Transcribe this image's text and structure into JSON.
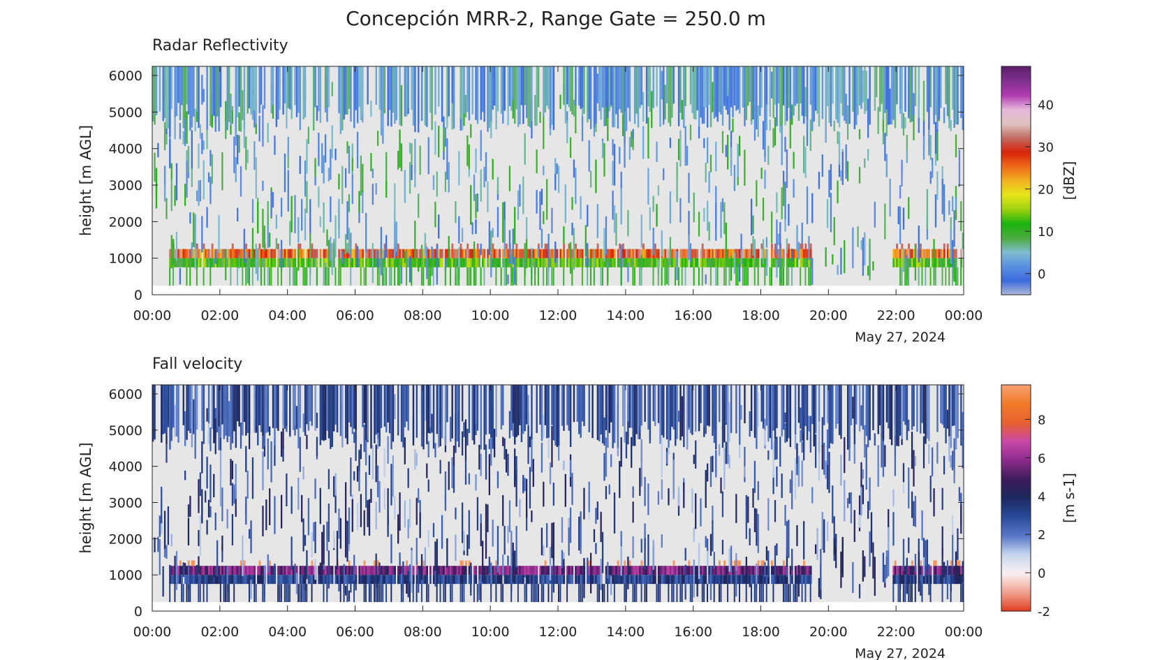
{
  "figure": {
    "title": "Concepción MRR-2, Range Gate = 250.0 m"
  },
  "chart_data": [
    {
      "type": "heatmap",
      "title": "Radar Reflectivity",
      "xlabel": "",
      "ylabel": "height [m AGL]",
      "date_label": "May 27, 2024",
      "x_ticks": [
        "00:00",
        "02:00",
        "04:00",
        "06:00",
        "08:00",
        "10:00",
        "12:00",
        "14:00",
        "16:00",
        "18:00",
        "20:00",
        "22:00",
        "00:00"
      ],
      "x_range_hours": [
        0,
        24
      ],
      "y_ticks": [
        0,
        1000,
        2000,
        3000,
        4000,
        5000,
        6000
      ],
      "y_range_m": [
        0,
        6250
      ],
      "data_height_range_m": [
        250,
        6250
      ],
      "range_gate_m": 250,
      "colorbar": {
        "label": "[dBZ]",
        "ticks": [
          0,
          10,
          20,
          30,
          40
        ],
        "range": [
          -5,
          49
        ],
        "colors": [
          "#b0bcd8",
          "#3b6bdc",
          "#5a8fe0",
          "#7fbcd0",
          "#4daa3d",
          "#19b40f",
          "#9cd10f",
          "#e6e61a",
          "#f0b21f",
          "#f06a1a",
          "#d8230a",
          "#c06a60",
          "#e0c4c0",
          "#e6b8dc",
          "#b03ab0",
          "#80308e",
          "#5c1f6a"
        ]
      },
      "layers": [
        {
          "feature": "rain band upper",
          "height_m": [
            1000,
            1250
          ],
          "value": 28
        },
        {
          "feature": "rain band lower",
          "height_m": [
            750,
            1000
          ],
          "value": 12
        },
        {
          "feature": "upper cloud",
          "height_m": [
            5250,
            6250
          ],
          "value": 3
        }
      ],
      "precip_periods_hours": [
        [
          0.5,
          19.5
        ],
        [
          21.9,
          24
        ]
      ]
    },
    {
      "type": "heatmap",
      "title": "Fall velocity",
      "xlabel": "",
      "ylabel": "height [m AGL]",
      "date_label": "May 27, 2024",
      "x_ticks": [
        "00:00",
        "02:00",
        "04:00",
        "06:00",
        "08:00",
        "10:00",
        "12:00",
        "14:00",
        "16:00",
        "18:00",
        "20:00",
        "22:00",
        "00:00"
      ],
      "x_range_hours": [
        0,
        24
      ],
      "y_ticks": [
        0,
        1000,
        2000,
        3000,
        4000,
        5000,
        6000
      ],
      "y_range_m": [
        0,
        6250
      ],
      "data_height_range_m": [
        250,
        6250
      ],
      "range_gate_m": 250,
      "colorbar": {
        "label": "[m s-1]",
        "ticks": [
          -2,
          0,
          2,
          4,
          6,
          8
        ],
        "range": [
          -2,
          9.8
        ],
        "colors": [
          "#e03c1e",
          "#f0a090",
          "#f8f0f0",
          "#c8d8f0",
          "#5878c8",
          "#2a4a9a",
          "#1c2a60",
          "#3a1c5a",
          "#8a2a8a",
          "#c848a8",
          "#e86030",
          "#f07a28",
          "#f8a070"
        ]
      },
      "layers": [
        {
          "feature": "rain band upper",
          "height_m": [
            1000,
            1250
          ],
          "value": 5.5
        },
        {
          "feature": "rain band lower",
          "height_m": [
            750,
            1000
          ],
          "value": 3.2
        },
        {
          "feature": "upper cloud",
          "height_m": [
            5250,
            6250
          ],
          "value": 2.8
        }
      ],
      "precip_periods_hours": [
        [
          0.5,
          19.5
        ],
        [
          21.9,
          24
        ]
      ]
    }
  ]
}
